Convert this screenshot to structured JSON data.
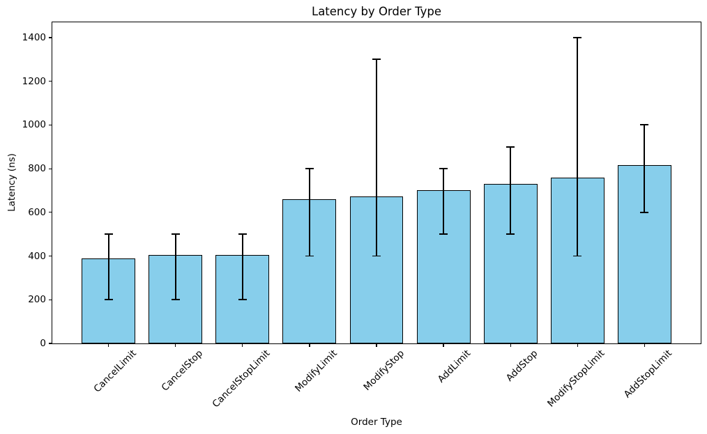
{
  "chart_data": {
    "type": "bar",
    "title": "Latency by Order Type",
    "xlabel": "Order Type",
    "ylabel": "Latency (ns)",
    "categories": [
      "CancelLimit",
      "CancelStop",
      "CancelStopLimit",
      "ModifyLimit",
      "ModifyStop",
      "AddLimit",
      "AddStop",
      "ModifyStopLimit",
      "AddStopLimit"
    ],
    "values": [
      390,
      406,
      406,
      660,
      672,
      700,
      730,
      758,
      815
    ],
    "error_low": [
      200,
      200,
      200,
      400,
      400,
      500,
      500,
      400,
      600
    ],
    "error_high": [
      500,
      500,
      500,
      800,
      1300,
      800,
      900,
      1400,
      1000
    ],
    "yticks": [
      0,
      200,
      400,
      600,
      800,
      1000,
      1200,
      1400
    ],
    "ylim": [
      0,
      1470
    ],
    "bar_width_frac": 0.8,
    "x_margin_units": 0.84,
    "x_tick_rotation_deg": 45,
    "bar_color": "#87CEEB",
    "bar_edge_color": "#000000",
    "errorbar_color": "#000000",
    "grid": false,
    "legend_position": "none"
  }
}
